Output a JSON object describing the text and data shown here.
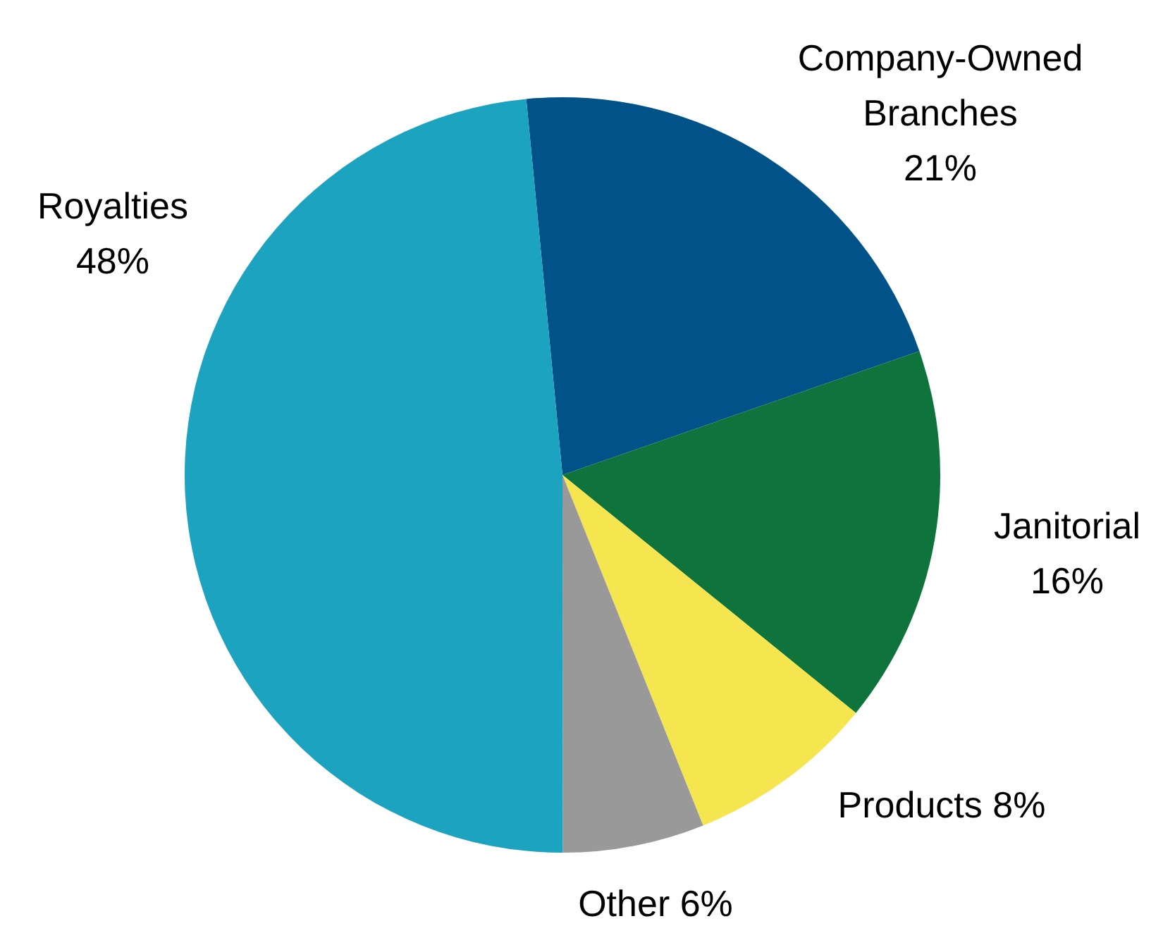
{
  "chart_data": {
    "type": "pie",
    "categories": [
      "Company-Owned Branches",
      "Janitorial",
      "Products",
      "Other",
      "Royalties"
    ],
    "values": [
      21,
      16,
      8,
      6,
      48
    ],
    "colors": [
      "#02528a",
      "#0f743c",
      "#f5e650",
      "#999999",
      "#1ba3bf"
    ],
    "value_labels": [
      "21%",
      "16%",
      "8%",
      "6%",
      "48%"
    ]
  }
}
